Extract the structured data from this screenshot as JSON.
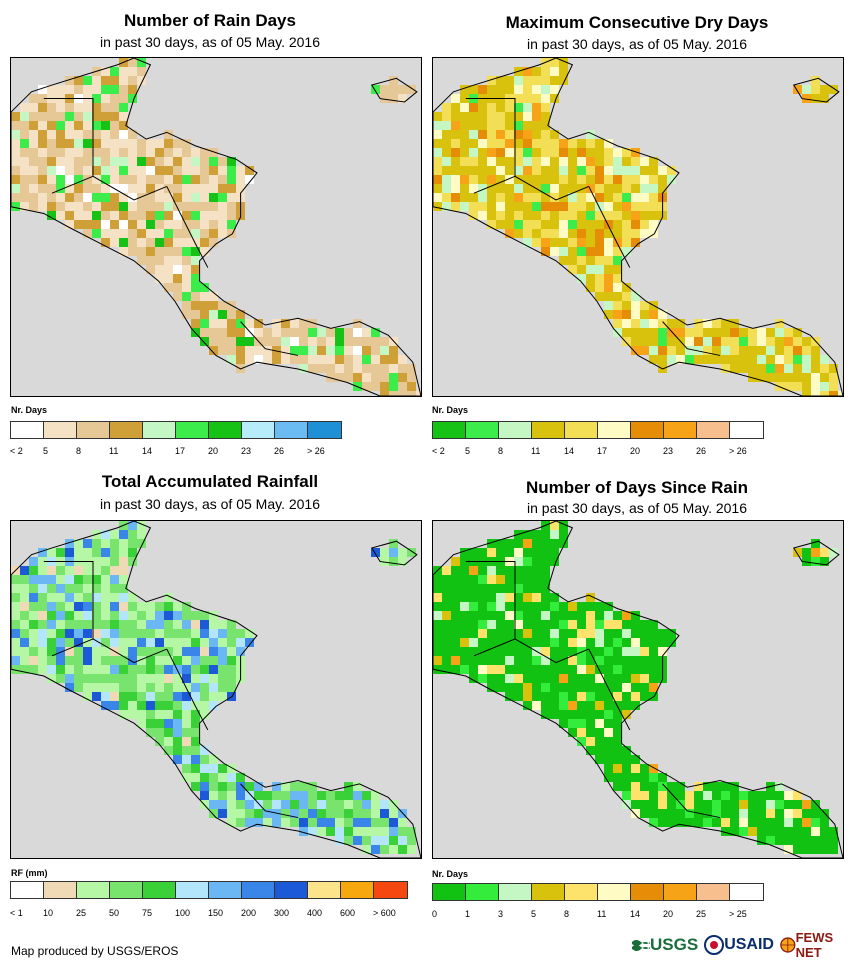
{
  "footer": "Map produced by USGS/EROS",
  "logos": {
    "usgs": "USGS",
    "usaid": "USAID",
    "fews": "FEWS NET"
  },
  "panels": [
    {
      "title": "Number of Rain Days",
      "subtitle": "in past 30 days, as of 05 May. 2016",
      "legend_title": "Nr. Days",
      "legend_colors": [
        "#ffffff",
        "#f5e1c3",
        "#e5c895",
        "#cf9f38",
        "#c4f7c4",
        "#3bec4b",
        "#17c217",
        "#b7ecfb",
        "#6bbcf3",
        "#1f8fd6"
      ],
      "legend_ticks": [
        "< 2",
        "5",
        "8",
        "11",
        "14",
        "17",
        "20",
        "23",
        "26",
        "> 26"
      ],
      "map_palette": [
        "#f5e1c3",
        "#e5c895",
        "#cf9f38",
        "#c4f7c4",
        "#3bec4b",
        "#17c217",
        "#ffffff"
      ],
      "map_weights": [
        30,
        36,
        14,
        6,
        7,
        4,
        3
      ]
    },
    {
      "title": "Maximum Consecutive Dry Days",
      "subtitle": "in past 30 days, as of 05 May. 2016",
      "legend_title": "Nr. Days",
      "legend_colors": [
        "#17c217",
        "#3bec4b",
        "#c4f7c4",
        "#d8c20d",
        "#f3df55",
        "#fffbc5",
        "#e58d07",
        "#f7a318",
        "#f7bf8e",
        "#ffffff"
      ],
      "legend_ticks": [
        "< 2",
        "5",
        "8",
        "11",
        "14",
        "17",
        "20",
        "23",
        "26",
        "> 26"
      ],
      "map_palette": [
        "#d8c20d",
        "#f3df55",
        "#fffbc5",
        "#c4f7c4",
        "#e58d07",
        "#f7a318",
        "#3bec4b"
      ],
      "map_weights": [
        40,
        26,
        8,
        10,
        6,
        6,
        4
      ]
    },
    {
      "title": "Total Accumulated Rainfall",
      "subtitle": "in past 30 days, as of 05 May. 2016",
      "legend_title": "RF (mm)",
      "legend_colors": [
        "#ffffff",
        "#f0d9b5",
        "#b6f7a6",
        "#78e46d",
        "#3ad038",
        "#b3e5fb",
        "#6bb7f3",
        "#3a86e8",
        "#1c59d6",
        "#fce48a",
        "#f7a80e",
        "#f54810"
      ],
      "legend_ticks": [
        "< 1",
        "10",
        "25",
        "50",
        "75",
        "100",
        "150",
        "200",
        "300",
        "400",
        "600",
        "> 600"
      ],
      "map_palette": [
        "#b6f7a6",
        "#78e46d",
        "#3ad038",
        "#b3e5fb",
        "#6bb7f3",
        "#3a86e8",
        "#1c59d6",
        "#f0d9b5"
      ],
      "map_weights": [
        28,
        26,
        12,
        8,
        10,
        8,
        4,
        4
      ]
    },
    {
      "title": "Number of Days Since Rain",
      "subtitle": "in past 30 days, as of 05 May. 2016",
      "legend_title": "Nr. Days",
      "legend_colors": [
        "#12c212",
        "#33ec3b",
        "#c4f7c4",
        "#d8c20d",
        "#fde26c",
        "#fffbc5",
        "#e58d07",
        "#f7a318",
        "#f7bf8e",
        "#ffffff"
      ],
      "legend_ticks": [
        "0",
        "1",
        "3",
        "5",
        "8",
        "11",
        "14",
        "20",
        "25",
        "> 25"
      ],
      "map_palette": [
        "#12c212",
        "#33ec3b",
        "#fde26c",
        "#fffbc5",
        "#f7a318",
        "#c4f7c4",
        "#d8c20d"
      ],
      "map_weights": [
        72,
        8,
        6,
        4,
        3,
        4,
        3
      ]
    }
  ]
}
